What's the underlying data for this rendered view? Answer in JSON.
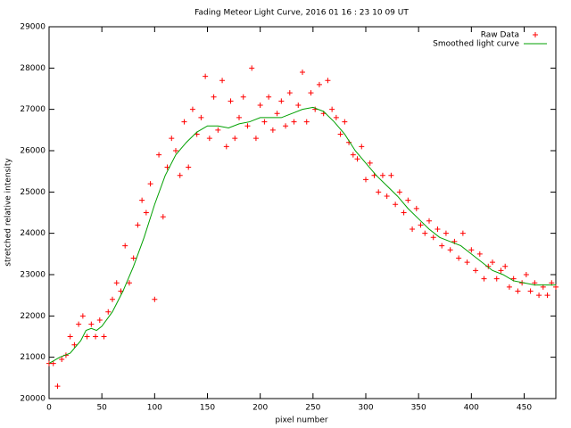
{
  "chart_data": {
    "type": "scatter",
    "title": "Fading Meteor Light Curve, 2016 01 16 : 23 10 09 UT",
    "x_label": "pixel number",
    "y_label": "stretched relative intensity",
    "xlim": [
      0,
      480
    ],
    "ylim": [
      20000,
      29000
    ],
    "xticks": [
      0,
      50,
      100,
      150,
      200,
      250,
      300,
      350,
      400,
      450
    ],
    "yticks": [
      20000,
      21000,
      22000,
      23000,
      24000,
      25000,
      26000,
      27000,
      28000,
      29000
    ],
    "grid": false,
    "legend": "top-right",
    "series": [
      {
        "name": "Raw Data",
        "color": "#ff0000",
        "style": "points",
        "x": [
          0,
          4,
          8,
          12,
          16,
          20,
          24,
          28,
          32,
          36,
          40,
          44,
          48,
          52,
          56,
          60,
          64,
          68,
          72,
          76,
          80,
          84,
          88,
          92,
          96,
          100,
          104,
          108,
          112,
          116,
          120,
          124,
          128,
          132,
          136,
          140,
          144,
          148,
          152,
          156,
          160,
          164,
          168,
          172,
          176,
          180,
          184,
          188,
          192,
          196,
          200,
          204,
          208,
          212,
          216,
          220,
          224,
          228,
          232,
          236,
          240,
          244,
          248,
          252,
          256,
          260,
          264,
          268,
          272,
          276,
          280,
          284,
          288,
          292,
          296,
          300,
          304,
          308,
          312,
          316,
          320,
          324,
          328,
          332,
          336,
          340,
          344,
          348,
          352,
          356,
          360,
          364,
          368,
          372,
          376,
          380,
          384,
          388,
          392,
          396,
          400,
          404,
          408,
          412,
          416,
          420,
          424,
          428,
          432,
          436,
          440,
          444,
          448,
          452,
          456,
          460,
          464,
          468,
          472,
          476,
          480
        ],
        "values": [
          20850,
          20850,
          20300,
          20950,
          21050,
          21500,
          21300,
          21800,
          22000,
          21500,
          21800,
          21500,
          21900,
          21500,
          22100,
          22400,
          22800,
          22600,
          23700,
          22800,
          23400,
          24200,
          24800,
          24500,
          25200,
          22400,
          25900,
          24400,
          25600,
          26300,
          26000,
          25400,
          26700,
          25600,
          27000,
          26400,
          26800,
          27800,
          26300,
          27300,
          26500,
          27700,
          26100,
          27200,
          26300,
          26800,
          27300,
          26600,
          28000,
          26300,
          27100,
          26700,
          27300,
          26500,
          26900,
          27200,
          26600,
          27400,
          26700,
          27100,
          27900,
          26700,
          27400,
          27000,
          27600,
          26900,
          27700,
          27000,
          26800,
          26400,
          26700,
          26200,
          25900,
          25800,
          26100,
          25300,
          25700,
          25400,
          25000,
          25400,
          24900,
          25400,
          24700,
          25000,
          24500,
          24800,
          24100,
          24600,
          24200,
          24000,
          24300,
          23900,
          24100,
          23700,
          24000,
          23600,
          23800,
          23400,
          24000,
          23300,
          23600,
          23100,
          23500,
          22900,
          23200,
          23300,
          22900,
          23100,
          23200,
          22700,
          22900,
          22600,
          22800,
          23000,
          22600,
          22800,
          22500,
          22700,
          22500,
          22800,
          22700
        ]
      },
      {
        "name": "Smoothed light curve",
        "color": "#00a000",
        "style": "lines",
        "x": [
          0,
          10,
          20,
          30,
          35,
          40,
          45,
          50,
          60,
          70,
          80,
          90,
          100,
          110,
          120,
          130,
          140,
          150,
          160,
          170,
          180,
          190,
          200,
          210,
          220,
          230,
          240,
          250,
          260,
          270,
          280,
          290,
          300,
          310,
          320,
          330,
          340,
          350,
          360,
          370,
          380,
          390,
          400,
          410,
          420,
          430,
          440,
          450,
          460,
          470,
          480
        ],
        "values": [
          20850,
          21000,
          21100,
          21400,
          21650,
          21700,
          21650,
          21750,
          22100,
          22600,
          23200,
          23900,
          24700,
          25400,
          25900,
          26200,
          26450,
          26600,
          26600,
          26550,
          26650,
          26700,
          26800,
          26800,
          26800,
          26900,
          27000,
          27050,
          26950,
          26700,
          26400,
          26000,
          25700,
          25400,
          25150,
          24900,
          24600,
          24350,
          24100,
          23900,
          23800,
          23700,
          23500,
          23300,
          23100,
          23000,
          22850,
          22800,
          22750,
          22750,
          22750
        ]
      }
    ]
  }
}
